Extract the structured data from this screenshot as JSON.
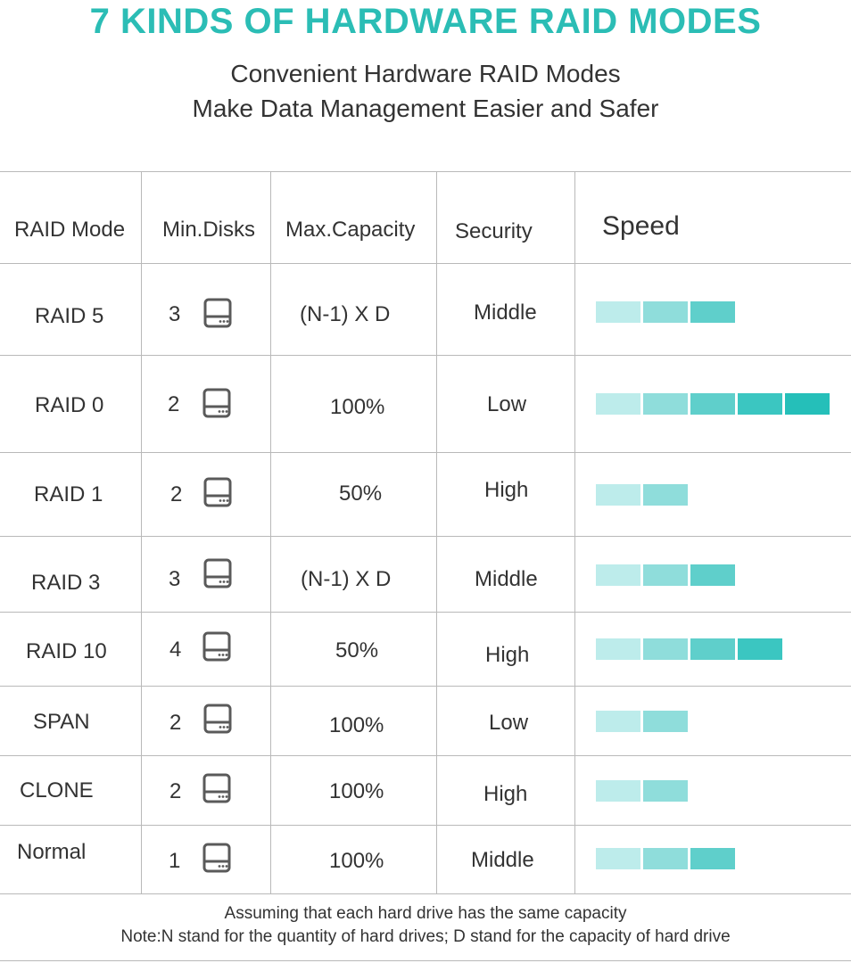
{
  "title": "7 KINDS OF HARDWARE RAID MODES",
  "subtitle_1": "Convenient Hardware RAID Modes",
  "subtitle_2": "Make Data Management Easier and Safer",
  "headers": {
    "mode": "RAID Mode",
    "disks": "Min.Disks",
    "capacity": "Max.Capacity",
    "security": "Security",
    "speed": "Speed"
  },
  "speed_colors": [
    "#bdeceb",
    "#8fdddb",
    "#5fcfcb",
    "#3bc6c1",
    "#25bfb9"
  ],
  "disk_icon": "hard-drive-icon",
  "rows": [
    {
      "mode": "RAID 5",
      "disks": "3",
      "capacity": "(N-1) X D",
      "security": "Middle",
      "speed": 3
    },
    {
      "mode": "RAID 0",
      "disks": "2",
      "capacity": "100%",
      "security": "Low",
      "speed": 5
    },
    {
      "mode": "RAID 1",
      "disks": "2",
      "capacity": "50%",
      "security": "High",
      "speed": 2
    },
    {
      "mode": "RAID 3",
      "disks": "3",
      "capacity": "(N-1) X D",
      "security": "Middle",
      "speed": 3
    },
    {
      "mode": "RAID 10",
      "disks": "4",
      "capacity": "50%",
      "security": "High",
      "speed": 4
    },
    {
      "mode": "SPAN",
      "disks": "2",
      "capacity": "100%",
      "security": "Low",
      "speed": 2
    },
    {
      "mode": "CLONE",
      "disks": "2",
      "capacity": "100%",
      "security": "High",
      "speed": 2
    },
    {
      "mode": "Normal",
      "disks": "1",
      "capacity": "100%",
      "security": "Middle",
      "speed": 3
    }
  ],
  "note_1": "Assuming that each hard drive has the same capacity",
  "note_2": "Note:N stand for the quantity of hard drives; D stand for the capacity of hard drive"
}
